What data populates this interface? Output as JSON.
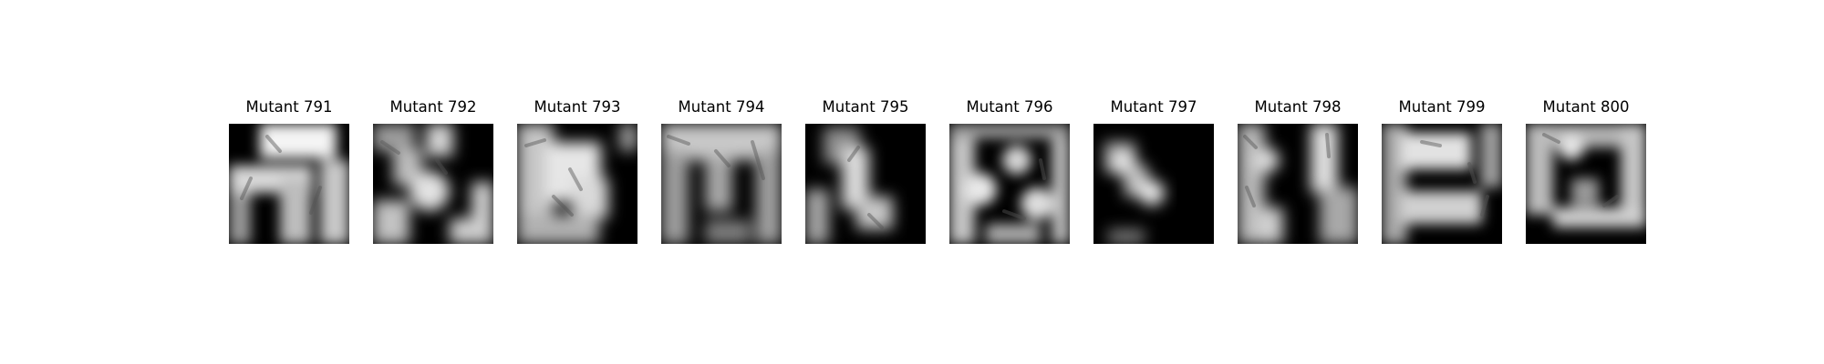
{
  "panels": [
    {
      "title": "Mutant 791"
    },
    {
      "title": "Mutant 792"
    },
    {
      "title": "Mutant 793"
    },
    {
      "title": "Mutant 794"
    },
    {
      "title": "Mutant 795"
    },
    {
      "title": "Mutant 796"
    },
    {
      "title": "Mutant 797"
    },
    {
      "title": "Mutant 798"
    },
    {
      "title": "Mutant 799"
    },
    {
      "title": "Mutant 800"
    }
  ]
}
